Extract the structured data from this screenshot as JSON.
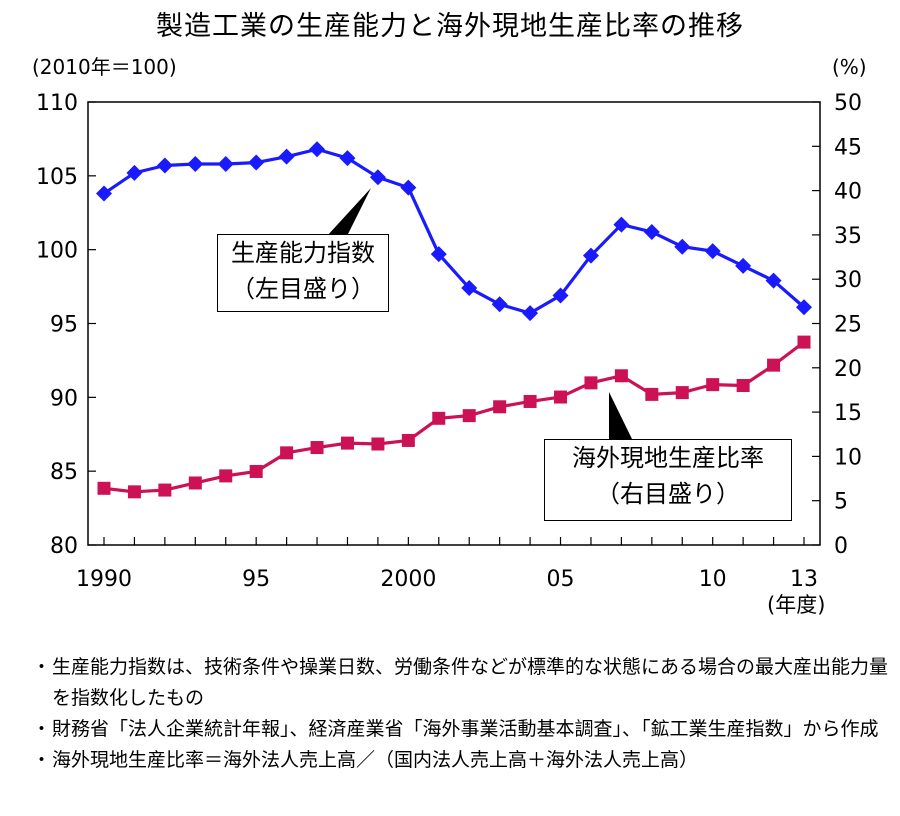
{
  "title": "製造工業の生産能力と海外現地生産比率の推移",
  "chart_data": {
    "type": "line",
    "title": "製造工業の生産能力と海外現地生産比率の推移",
    "left_unit": "(2010年＝100)",
    "right_unit": "(%)",
    "x_unit": "(年度)",
    "x": [
      1990,
      1991,
      1992,
      1993,
      1994,
      1995,
      1996,
      1997,
      1998,
      1999,
      2000,
      2001,
      2002,
      2003,
      2004,
      2005,
      2006,
      2007,
      2008,
      2009,
      2010,
      2011,
      2012,
      2013
    ],
    "x_tick_values": [
      1990,
      1995,
      2000,
      2005,
      2010,
      2013
    ],
    "x_tick_labels": [
      "1990",
      "95",
      "2000",
      "05",
      "10",
      "13"
    ],
    "y_left_lim": [
      80,
      110
    ],
    "y_left_ticks": [
      80,
      85,
      90,
      95,
      100,
      105,
      110
    ],
    "y_right_lim": [
      0,
      50
    ],
    "y_right_ticks": [
      0,
      5,
      10,
      15,
      20,
      25,
      30,
      35,
      40,
      45,
      50
    ],
    "series": [
      {
        "name": "生産能力指数",
        "axis": "left",
        "color": "#1a1aff",
        "marker": "diamond",
        "values": [
          103.8,
          105.2,
          105.7,
          105.8,
          105.8,
          105.9,
          106.3,
          106.8,
          106.2,
          104.9,
          104.2,
          99.7,
          97.4,
          96.3,
          95.7,
          96.9,
          99.6,
          101.7,
          101.2,
          100.2,
          99.9,
          98.9,
          97.9,
          96.1
        ]
      },
      {
        "name": "海外現地生産比率",
        "axis": "right",
        "color": "#cc1155",
        "marker": "square",
        "values": [
          6.4,
          6.0,
          6.2,
          7.0,
          7.8,
          8.3,
          10.4,
          11.0,
          11.5,
          11.4,
          11.8,
          14.3,
          14.6,
          15.6,
          16.2,
          16.7,
          18.3,
          19.1,
          17.0,
          17.2,
          18.1,
          18.0,
          20.3,
          22.9
        ]
      }
    ],
    "annotations": [
      {
        "line1": "生産能力指数",
        "line2": "（左目盛り）"
      },
      {
        "line1": "海外現地生産比率",
        "line2": "（右目盛り）"
      }
    ]
  },
  "notes": [
    {
      "bullet": "・",
      "text": "生産能力指数は、技術条件や操業日数、労働条件などが標準的な状態にある場合の最大産出能力量を指数化したもの"
    },
    {
      "bullet": "・",
      "text": "財務省「法人企業統計年報」、経済産業省「海外事業活動基本調査」、「鉱工業生産指数」から作成"
    },
    {
      "bullet": "・",
      "text": "海外現地生産比率＝海外法人売上高／（国内法人売上高＋海外法人売上高）"
    }
  ]
}
